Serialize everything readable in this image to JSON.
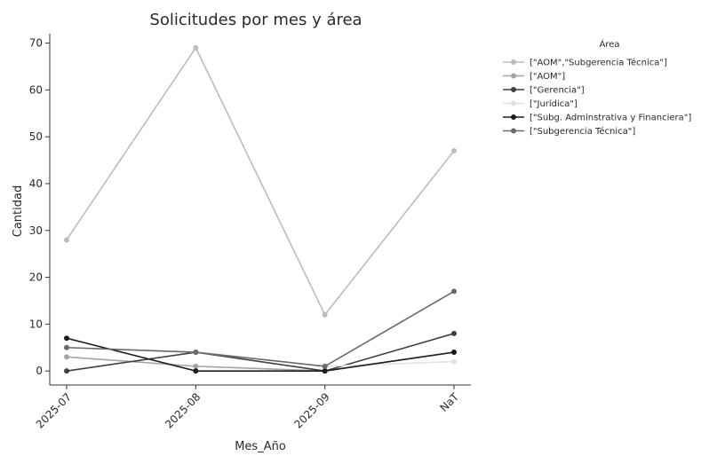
{
  "chart_data": {
    "type": "line",
    "title": "Solicitudes por mes y área",
    "xlabel": "Mes_Año",
    "ylabel": "Cantidad",
    "categories": [
      "2025-07",
      "2025-08",
      "2025-09",
      "NaT"
    ],
    "yticks": [
      0,
      10,
      20,
      30,
      40,
      50,
      60,
      70
    ],
    "ylim": [
      -3,
      72
    ],
    "grid": false,
    "legend": {
      "title": "Área",
      "placement": "right"
    },
    "series": [
      {
        "name": "[\"AOM\",\"Subgerencia Técnica\"]",
        "color": "#bcbcbc",
        "values": [
          28,
          69,
          12,
          47
        ]
      },
      {
        "name": "[\"AOM\"]",
        "color": "#a4a4a4",
        "values": [
          3,
          1,
          0,
          4
        ]
      },
      {
        "name": "[\"Gerencia\"]",
        "color": "#404040",
        "values": [
          0,
          4,
          0,
          8
        ]
      },
      {
        "name": "[\"Jurídica\"]",
        "color": "#e2e2e2",
        "values": [
          5,
          4,
          1,
          2
        ]
      },
      {
        "name": "[\"Subg. Adminstrativa y Financiera\"]",
        "color": "#1e1e1e",
        "values": [
          7,
          0,
          0,
          4
        ]
      },
      {
        "name": "[\"Subgerencia Técnica\"]",
        "color": "#6a6a6a",
        "values": [
          5,
          4,
          1,
          17
        ]
      }
    ]
  }
}
